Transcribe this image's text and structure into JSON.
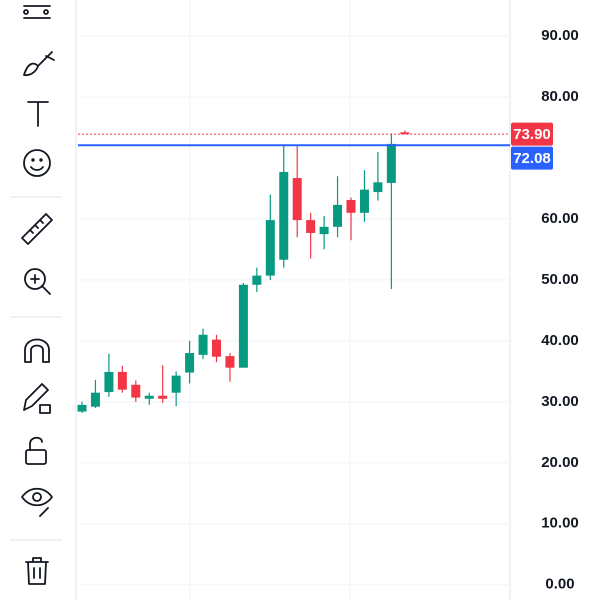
{
  "chart_data": {
    "type": "candlestick",
    "open": [
      28.4,
      29.2,
      31.6,
      34.9,
      32.8,
      30.5,
      31.0,
      31.5,
      34.8,
      37.7,
      40.2,
      37.5,
      35.6,
      49.2,
      50.7,
      53.3,
      66.7,
      59.8,
      57.5,
      58.7,
      63.1,
      61.0,
      64.4,
      65.9,
      74.2
    ],
    "high": [
      30.0,
      33.6,
      37.9,
      35.9,
      33.5,
      31.5,
      36.0,
      35.0,
      40.0,
      42.0,
      41.0,
      38.0,
      49.5,
      52.0,
      64.0,
      72.1,
      72.1,
      61.0,
      60.5,
      67.0,
      63.5,
      68.0,
      71.0,
      74.0,
      74.5
    ],
    "low": [
      28.2,
      29.0,
      30.8,
      31.5,
      30.0,
      29.5,
      29.8,
      29.3,
      33.0,
      37.0,
      36.5,
      33.3,
      35.6,
      48.0,
      50.0,
      52.0,
      57.0,
      53.5,
      55.0,
      57.0,
      56.5,
      59.5,
      63.0,
      48.5,
      73.9
    ],
    "close": [
      29.5,
      31.5,
      34.9,
      32.0,
      30.7,
      31.0,
      30.5,
      34.3,
      38.0,
      41.0,
      37.4,
      35.6,
      49.2,
      50.7,
      59.8,
      67.7,
      59.8,
      57.7,
      58.7,
      62.3,
      61.0,
      64.8,
      66.0,
      72.3,
      73.9
    ],
    "up_color": "#089981",
    "down_color": "#f23645",
    "ylim": [
      -2.5,
      95.9
    ],
    "yticks": [
      {
        "value": 0,
        "label": "0.00"
      },
      {
        "value": 10,
        "label": "10.00"
      },
      {
        "value": 20,
        "label": "20.00"
      },
      {
        "value": 30,
        "label": "30.00"
      },
      {
        "value": 40,
        "label": "40.00"
      },
      {
        "value": 50,
        "label": "50.00"
      },
      {
        "value": 60,
        "label": "60.00"
      },
      {
        "value": 80,
        "label": "80.00"
      },
      {
        "value": 90,
        "label": "90.00"
      }
    ],
    "grid": true,
    "price_lines": [
      {
        "value": 73.9,
        "label": "73.90",
        "color": "#f23645",
        "style": "dotted"
      },
      {
        "value": 72.08,
        "label": "72.08",
        "color": "#2962ff",
        "style": "solid"
      }
    ]
  }
}
